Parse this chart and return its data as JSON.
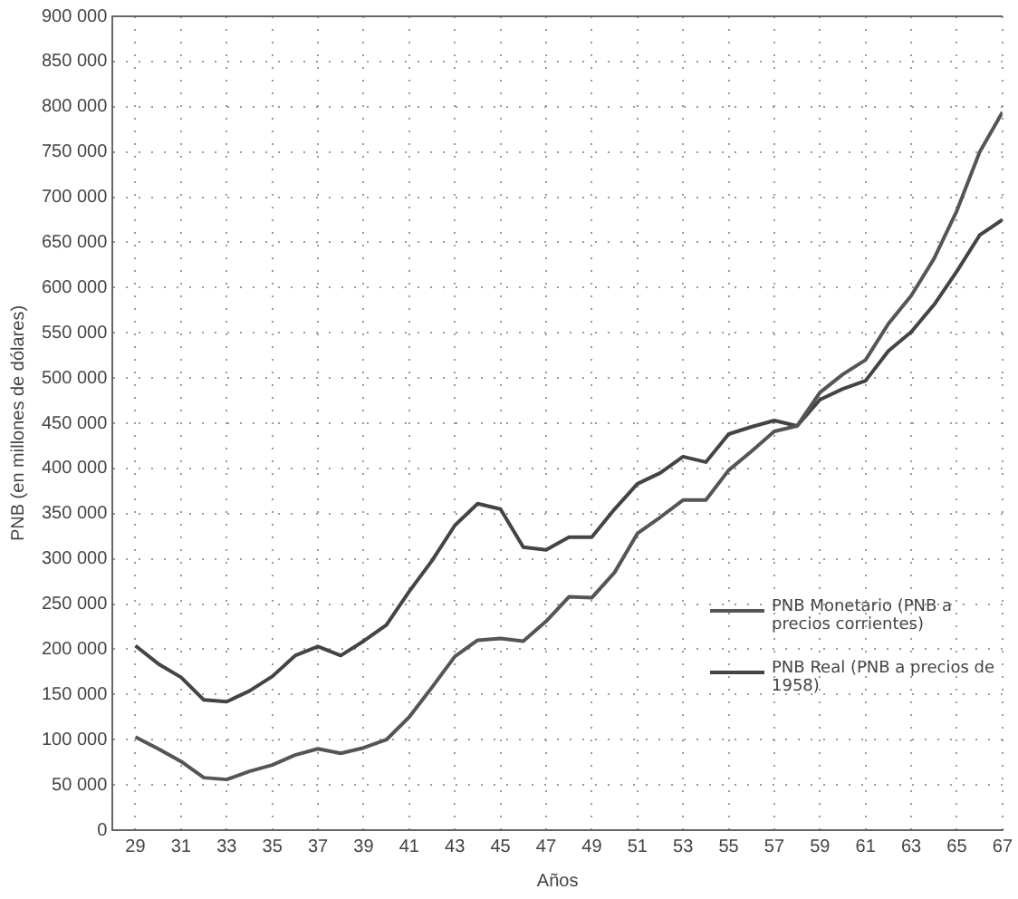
{
  "chart_data": {
    "type": "line",
    "xlabel": "Años",
    "ylabel": "PNB (en millones de dólares)",
    "x": [
      29,
      30,
      31,
      32,
      33,
      34,
      35,
      36,
      37,
      38,
      39,
      40,
      41,
      42,
      43,
      44,
      45,
      46,
      47,
      48,
      49,
      50,
      51,
      52,
      53,
      54,
      55,
      56,
      57,
      58,
      59,
      60,
      61,
      62,
      63,
      64,
      65,
      66,
      67
    ],
    "series": [
      {
        "name": "PNB Monetario (PNB a precios corrientes)",
        "color": "#555555",
        "values": [
          103000,
          90000,
          76000,
          58000,
          56000,
          65000,
          72000,
          83000,
          90000,
          85000,
          91000,
          100000,
          125000,
          158000,
          192000,
          210000,
          212000,
          209000,
          231000,
          258000,
          257000,
          285000,
          328000,
          346000,
          365000,
          365000,
          398000,
          419000,
          441000,
          447000,
          484000,
          504000,
          520000,
          560000,
          591000,
          632000,
          685000,
          750000,
          794000
        ]
      },
      {
        "name": "PNB Real (PNB a precios de 1958)",
        "color": "#444444",
        "values": [
          204000,
          184000,
          169000,
          144000,
          142000,
          154000,
          170000,
          193000,
          203000,
          193000,
          209000,
          227000,
          264000,
          298000,
          337000,
          361000,
          355000,
          313000,
          310000,
          324000,
          324000,
          355000,
          383000,
          395000,
          413000,
          407000,
          438000,
          446000,
          453000,
          447000,
          476000,
          488000,
          497000,
          530000,
          551000,
          581000,
          618000,
          658000,
          675000
        ]
      }
    ],
    "xlim": [
      28,
      67
    ],
    "xticks": [
      29,
      31,
      33,
      35,
      37,
      39,
      41,
      43,
      45,
      47,
      49,
      51,
      53,
      55,
      57,
      59,
      61,
      63,
      65,
      67
    ],
    "ylim": [
      0,
      900000
    ],
    "yticks": [
      {
        "value": 0,
        "label": "0"
      },
      {
        "value": 50000,
        "label": "50 000"
      },
      {
        "value": 100000,
        "label": "100 000"
      },
      {
        "value": 150000,
        "label": "150 000"
      },
      {
        "value": 200000,
        "label": "200 000"
      },
      {
        "value": 250000,
        "label": "250 000"
      },
      {
        "value": 300000,
        "label": "300 000"
      },
      {
        "value": 350000,
        "label": "350 000"
      },
      {
        "value": 400000,
        "label": "400 000"
      },
      {
        "value": 450000,
        "label": "450 000"
      },
      {
        "value": 500000,
        "label": "500 000"
      },
      {
        "value": 550000,
        "label": "550 000"
      },
      {
        "value": 600000,
        "label": "600 000"
      },
      {
        "value": 650000,
        "label": "650 000"
      },
      {
        "value": 700000,
        "label": "700 000"
      },
      {
        "value": 750000,
        "label": "750 000"
      },
      {
        "value": 800000,
        "label": "800 000"
      },
      {
        "value": 850000,
        "label": "850 000"
      },
      {
        "value": 900000,
        "label": "900 000"
      }
    ],
    "grid": true,
    "legend": "right",
    "marker": "none",
    "line_style": "solid"
  }
}
